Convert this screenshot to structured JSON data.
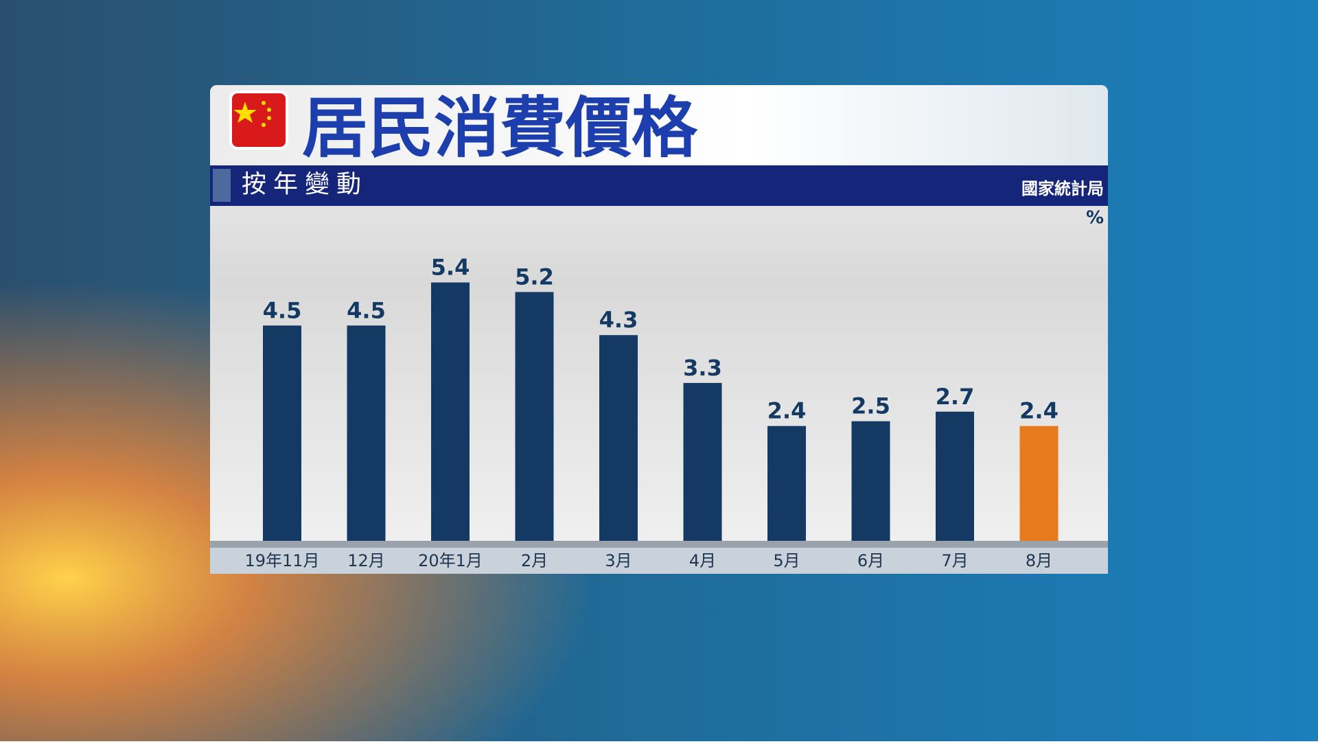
{
  "chart_data": {
    "type": "bar",
    "title": "居民消費價格",
    "subtitle": "按年變動",
    "source": "國家統計局",
    "unit": "%",
    "categories": [
      "19年11月",
      "12月",
      "20年1月",
      "2月",
      "3月",
      "4月",
      "5月",
      "6月",
      "7月",
      "8月"
    ],
    "values": [
      4.5,
      4.5,
      5.4,
      5.2,
      4.3,
      3.3,
      2.4,
      2.5,
      2.7,
      2.4
    ],
    "colors": [
      "#143a63",
      "#143a63",
      "#143a63",
      "#143a63",
      "#143a63",
      "#143a63",
      "#143a63",
      "#143a63",
      "#143a63",
      "#e87a1e"
    ],
    "ylim": [
      0,
      7
    ]
  }
}
